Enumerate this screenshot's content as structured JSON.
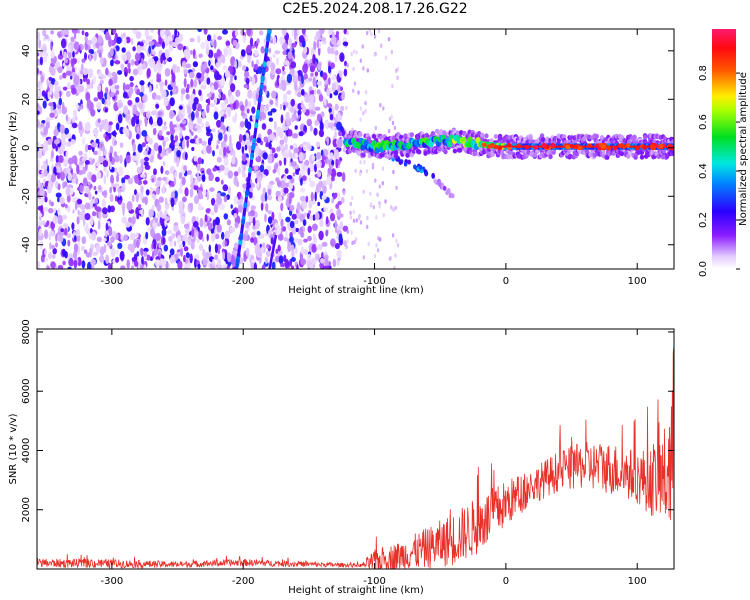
{
  "title": "C2E5.2024.208.17.26.G22",
  "chart_data": [
    {
      "type": "heatmap",
      "xlabel": "Height of straight line (km)",
      "ylabel": "Frequency (Hz)",
      "xlim": [
        -357,
        128
      ],
      "ylim": [
        -50,
        49
      ],
      "x_ticks": [
        "-300",
        "-200",
        "-100",
        "0",
        "100"
      ],
      "y_ticks": [
        "-40",
        "-20",
        "0",
        "20",
        "40"
      ],
      "colorbar": {
        "label": "Normalized spectral amplitude",
        "range": [
          0.0,
          0.98
        ],
        "ticks": [
          "0.0",
          "0.2",
          "0.4",
          "0.6",
          "0.8"
        ]
      },
      "features": {
        "noise_region_x": [
          -357,
          -122
        ],
        "main_ridge": {
          "x": [
            -122,
            -100,
            -80,
            -60,
            -40,
            -20,
            0,
            20,
            40,
            60,
            80,
            100,
            128
          ],
          "y": [
            2.5,
            0.5,
            1.0,
            2.0,
            3.0,
            1.5,
            0.5,
            0.5,
            0.5,
            0.5,
            0.5,
            0.5,
            0.5
          ]
        },
        "sweep_line": {
          "x": [
            -205,
            -180
          ],
          "y": [
            -50,
            49
          ]
        },
        "branch": {
          "x": [
            -90,
            -60,
            -40
          ],
          "y": [
            -3,
            -10,
            -20
          ]
        }
      }
    },
    {
      "type": "line",
      "xlabel": "Height of straight line (km)",
      "ylabel": "SNR (10 * v/v)",
      "xlim": [
        -357,
        128
      ],
      "ylim": [
        0,
        8100
      ],
      "x_ticks": [
        "-300",
        "-200",
        "-100",
        "0",
        "100"
      ],
      "y_ticks": [
        "2000",
        "4000",
        "6000",
        "8000"
      ],
      "color": "#e8302a",
      "envelope": {
        "x": [
          -357,
          -300,
          -250,
          -200,
          -150,
          -110,
          -100,
          -80,
          -60,
          -40,
          -20,
          0,
          20,
          40,
          60,
          80,
          100,
          110,
          120,
          125,
          128
        ],
        "mean": [
          200,
          180,
          150,
          220,
          160,
          120,
          250,
          450,
          700,
          1000,
          1500,
          2200,
          2800,
          3300,
          3500,
          3400,
          3100,
          3000,
          3100,
          3300,
          4000
        ],
        "amp": [
          150,
          150,
          100,
          120,
          90,
          60,
          400,
          500,
          700,
          900,
          1000,
          800,
          600,
          700,
          800,
          900,
          900,
          1200,
          1600,
          2300,
          4000
        ]
      }
    }
  ]
}
